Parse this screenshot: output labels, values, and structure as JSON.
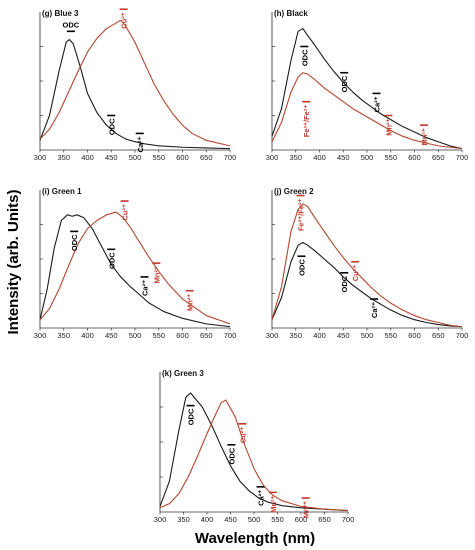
{
  "figure": {
    "ylabel": "Intensity (arb. Units)",
    "xlabel": "Wavelength (nm)"
  },
  "colors": {
    "black_series": "#1a1a1a",
    "red_series": "#b5462f",
    "black_label": "#000000",
    "red_label": "#c0392b"
  },
  "chart_data": [
    {
      "type": "line",
      "title": "(g) Blue 3",
      "xlim": [
        300,
        700
      ],
      "xticks": [
        "300",
        "350",
        "400",
        "450",
        "500",
        "550",
        "600",
        "650",
        "700"
      ],
      "series": [
        {
          "color": "black",
          "x": [
            300,
            320,
            340,
            355,
            362,
            370,
            385,
            400,
            420,
            440,
            460,
            480,
            500,
            520,
            550,
            600,
            650,
            700
          ],
          "y": [
            0.07,
            0.25,
            0.57,
            0.78,
            0.8,
            0.77,
            0.6,
            0.41,
            0.27,
            0.18,
            0.12,
            0.08,
            0.06,
            0.045,
            0.03,
            0.02,
            0.015,
            0.01
          ]
        },
        {
          "color": "red",
          "x": [
            300,
            320,
            340,
            360,
            380,
            400,
            420,
            440,
            460,
            470,
            480,
            500,
            520,
            540,
            560,
            580,
            600,
            620,
            650,
            700
          ],
          "y": [
            0.08,
            0.15,
            0.27,
            0.42,
            0.57,
            0.71,
            0.81,
            0.88,
            0.92,
            0.94,
            0.9,
            0.78,
            0.63,
            0.48,
            0.36,
            0.26,
            0.18,
            0.12,
            0.07,
            0.03
          ]
        }
      ],
      "annotations": [
        {
          "text": "ODC",
          "x": 365,
          "y": 0.86,
          "color": "black",
          "rotate": false
        },
        {
          "text": "ODC",
          "x": 450,
          "y": 0.25,
          "color": "black",
          "rotate": true
        },
        {
          "text": "Ca²⁺",
          "x": 510,
          "y": 0.12,
          "color": "black",
          "rotate": true
        },
        {
          "text": "Cu²⁺",
          "x": 476,
          "y": 1.02,
          "color": "red",
          "rotate": true
        }
      ]
    },
    {
      "type": "line",
      "title": "(h) Black",
      "xlim": [
        300,
        700
      ],
      "xticks": [
        "300",
        "350",
        "400",
        "450",
        "500",
        "550",
        "600",
        "650",
        "700"
      ],
      "series": [
        {
          "color": "black",
          "x": [
            300,
            320,
            340,
            355,
            365,
            375,
            390,
            410,
            430,
            450,
            470,
            490,
            510,
            530,
            550,
            575,
            600,
            625,
            650,
            675,
            700
          ],
          "y": [
            0.1,
            0.3,
            0.65,
            0.86,
            0.88,
            0.83,
            0.76,
            0.66,
            0.57,
            0.49,
            0.42,
            0.36,
            0.31,
            0.26,
            0.22,
            0.17,
            0.13,
            0.09,
            0.06,
            0.03,
            0.01
          ]
        },
        {
          "color": "red",
          "x": [
            300,
            320,
            340,
            355,
            365,
            375,
            390,
            410,
            430,
            450,
            470,
            490,
            510,
            530,
            550,
            575,
            600,
            625,
            650,
            675,
            700
          ],
          "y": [
            0.06,
            0.2,
            0.42,
            0.53,
            0.56,
            0.55,
            0.51,
            0.45,
            0.4,
            0.35,
            0.3,
            0.26,
            0.22,
            0.18,
            0.14,
            0.1,
            0.07,
            0.05,
            0.03,
            0.02,
            0.01
          ]
        }
      ],
      "annotations": [
        {
          "text": "ODC",
          "x": 368,
          "y": 0.75,
          "color": "black",
          "rotate": true
        },
        {
          "text": "ODC",
          "x": 452,
          "y": 0.56,
          "color": "black",
          "rotate": true
        },
        {
          "text": "Ca²⁺",
          "x": 520,
          "y": 0.41,
          "color": "black",
          "rotate": true
        },
        {
          "text": "Fe³⁺/Fe²⁺",
          "x": 372,
          "y": 0.35,
          "color": "red",
          "rotate": true
        },
        {
          "text": "Mn²⁺",
          "x": 545,
          "y": 0.25,
          "color": "red",
          "rotate": true
        },
        {
          "text": "Mn²⁺",
          "x": 620,
          "y": 0.18,
          "color": "red",
          "rotate": true
        }
      ]
    },
    {
      "type": "line",
      "title": "(i) Green 1",
      "xlim": [
        300,
        700
      ],
      "xticks": [
        "300",
        "350",
        "400",
        "450",
        "500",
        "550",
        "600",
        "650",
        "700"
      ],
      "series": [
        {
          "color": "black",
          "x": [
            300,
            315,
            330,
            345,
            358,
            368,
            378,
            392,
            410,
            430,
            450,
            470,
            490,
            510,
            530,
            560,
            600,
            650,
            700
          ],
          "y": [
            0.06,
            0.28,
            0.58,
            0.78,
            0.82,
            0.81,
            0.82,
            0.8,
            0.72,
            0.59,
            0.46,
            0.37,
            0.3,
            0.24,
            0.18,
            0.12,
            0.07,
            0.03,
            0.01
          ]
        },
        {
          "color": "red",
          "x": [
            300,
            320,
            340,
            360,
            380,
            400,
            420,
            440,
            460,
            475,
            490,
            510,
            530,
            550,
            570,
            600,
            650,
            700
          ],
          "y": [
            0.06,
            0.14,
            0.28,
            0.45,
            0.61,
            0.72,
            0.78,
            0.82,
            0.84,
            0.8,
            0.73,
            0.62,
            0.51,
            0.41,
            0.32,
            0.21,
            0.09,
            0.03
          ]
        }
      ],
      "annotations": [
        {
          "text": "ODC",
          "x": 372,
          "y": 0.7,
          "color": "black",
          "rotate": true
        },
        {
          "text": "ODC",
          "x": 450,
          "y": 0.57,
          "color": "black",
          "rotate": true
        },
        {
          "text": "Ca²⁺",
          "x": 520,
          "y": 0.37,
          "color": "black",
          "rotate": true
        },
        {
          "text": "Cu²⁺",
          "x": 478,
          "y": 0.92,
          "color": "red",
          "rotate": true
        },
        {
          "text": "Mn²⁺",
          "x": 545,
          "y": 0.47,
          "color": "red",
          "rotate": true
        },
        {
          "text": "Mn²⁺",
          "x": 615,
          "y": 0.27,
          "color": "red",
          "rotate": true
        }
      ]
    },
    {
      "type": "line",
      "title": "(j) Green 2",
      "xlim": [
        300,
        700
      ],
      "xticks": [
        "300",
        "350",
        "400",
        "450",
        "500",
        "550",
        "600",
        "650",
        "700"
      ],
      "series": [
        {
          "color": "black",
          "x": [
            300,
            320,
            340,
            355,
            365,
            375,
            390,
            410,
            430,
            450,
            470,
            490,
            510,
            530,
            550,
            575,
            600,
            625,
            650,
            675,
            700
          ],
          "y": [
            0.06,
            0.22,
            0.48,
            0.6,
            0.62,
            0.6,
            0.56,
            0.5,
            0.44,
            0.37,
            0.31,
            0.26,
            0.21,
            0.17,
            0.13,
            0.09,
            0.06,
            0.04,
            0.025,
            0.015,
            0.01
          ]
        },
        {
          "color": "red",
          "x": [
            300,
            320,
            340,
            355,
            365,
            375,
            390,
            410,
            430,
            450,
            470,
            490,
            510,
            530,
            550,
            575,
            600,
            625,
            650,
            675,
            700
          ],
          "y": [
            0.06,
            0.3,
            0.7,
            0.86,
            0.9,
            0.88,
            0.8,
            0.7,
            0.6,
            0.51,
            0.43,
            0.36,
            0.29,
            0.23,
            0.18,
            0.13,
            0.09,
            0.06,
            0.04,
            0.02,
            0.01
          ]
        }
      ],
      "annotations": [
        {
          "text": "ODC",
          "x": 362,
          "y": 0.52,
          "color": "black",
          "rotate": true
        },
        {
          "text": "ODC",
          "x": 452,
          "y": 0.4,
          "color": "black",
          "rotate": true
        },
        {
          "text": "Ca²⁺",
          "x": 515,
          "y": 0.21,
          "color": "black",
          "rotate": true
        },
        {
          "text": "Fe³⁺/Fe²⁺",
          "x": 360,
          "y": 0.96,
          "color": "red",
          "rotate": true
        },
        {
          "text": "Cu²⁺",
          "x": 475,
          "y": 0.48,
          "color": "red",
          "rotate": true
        }
      ]
    },
    {
      "type": "line",
      "title": "(k) Green 3",
      "xlim": [
        300,
        700
      ],
      "xticks": [
        "300",
        "350",
        "400",
        "450",
        "500",
        "550",
        "600",
        "650",
        "700"
      ],
      "series": [
        {
          "color": "black",
          "x": [
            300,
            320,
            340,
            355,
            365,
            375,
            390,
            410,
            430,
            450,
            470,
            490,
            510,
            530,
            560,
            600,
            650,
            700
          ],
          "y": [
            0.04,
            0.22,
            0.58,
            0.82,
            0.85,
            0.81,
            0.75,
            0.62,
            0.47,
            0.33,
            0.22,
            0.15,
            0.1,
            0.07,
            0.045,
            0.03,
            0.02,
            0.01
          ]
        },
        {
          "color": "red",
          "x": [
            300,
            320,
            340,
            360,
            380,
            400,
            420,
            430,
            440,
            460,
            480,
            500,
            520,
            540,
            560,
            600,
            650,
            700
          ],
          "y": [
            0.03,
            0.06,
            0.13,
            0.25,
            0.4,
            0.56,
            0.71,
            0.78,
            0.8,
            0.68,
            0.48,
            0.31,
            0.19,
            0.12,
            0.08,
            0.04,
            0.02,
            0.01
          ]
        }
      ],
      "annotations": [
        {
          "text": "ODC",
          "x": 365,
          "y": 0.76,
          "color": "black",
          "rotate": true
        },
        {
          "text": "ODC",
          "x": 452,
          "y": 0.48,
          "color": "black",
          "rotate": true
        },
        {
          "text": "Ca²⁺",
          "x": 514,
          "y": 0.18,
          "color": "black",
          "rotate": true
        },
        {
          "text": "Cu²⁺",
          "x": 475,
          "y": 0.63,
          "color": "red",
          "rotate": true
        },
        {
          "text": "Mn²⁺",
          "x": 540,
          "y": 0.14,
          "color": "red",
          "rotate": true
        },
        {
          "text": "Mn²⁺",
          "x": 610,
          "y": 0.1,
          "color": "red",
          "rotate": true
        }
      ]
    }
  ]
}
